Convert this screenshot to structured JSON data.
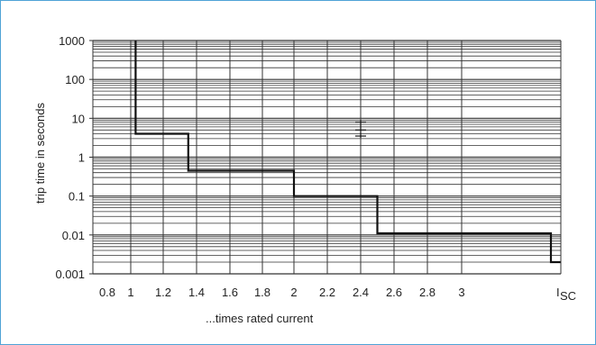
{
  "chart_data": {
    "type": "line",
    "title": "",
    "xlabel": "...times rated current",
    "ylabel": "trip time in seconds",
    "yscale": "log",
    "ylim": [
      0.001,
      1000
    ],
    "xlim": [
      0.8,
      3.6
    ],
    "grid": true,
    "y_ticks": [
      {
        "value": 1000,
        "label": "1000"
      },
      {
        "value": 100,
        "label": "100"
      },
      {
        "value": 10,
        "label": "10"
      },
      {
        "value": 1,
        "label": "1"
      },
      {
        "value": 0.1,
        "label": "0.1"
      },
      {
        "value": 0.01,
        "label": "0.01"
      },
      {
        "value": 0.001,
        "label": "0.001"
      }
    ],
    "x_ticks": [
      {
        "value": 0.8,
        "label": "0.8"
      },
      {
        "value": 1.0,
        "label": "1"
      },
      {
        "value": 1.2,
        "label": "1.2"
      },
      {
        "value": 1.4,
        "label": "1.4"
      },
      {
        "value": 1.6,
        "label": "1.6"
      },
      {
        "value": 1.8,
        "label": "1.8"
      },
      {
        "value": 2.0,
        "label": "2"
      },
      {
        "value": 2.2,
        "label": "2.2"
      },
      {
        "value": 2.4,
        "label": "2.4"
      },
      {
        "value": 2.6,
        "label": "2.6"
      },
      {
        "value": 2.8,
        "label": "2.8"
      },
      {
        "value": 3.0,
        "label": "3"
      },
      {
        "value": 3.6,
        "label": "I",
        "subscript": "SC"
      }
    ],
    "series": [
      {
        "color": "#111111",
        "points": [
          [
            1.03,
            1000
          ],
          [
            1.03,
            4
          ],
          [
            1.35,
            4
          ],
          [
            1.35,
            0.45
          ],
          [
            2.0,
            0.45
          ],
          [
            2.0,
            0.1
          ],
          [
            2.5,
            0.1
          ],
          [
            2.5,
            0.011
          ],
          [
            3.55,
            0.011
          ],
          [
            3.55,
            0.002
          ],
          [
            3.68,
            0.002
          ]
        ]
      }
    ],
    "marker": {
      "x": 2.4,
      "y_values": [
        8,
        5,
        3.5
      ]
    }
  },
  "colors": {
    "frame": "#4fa3d6",
    "grid": "#333333",
    "curve": "#111111",
    "text": "#222222"
  }
}
